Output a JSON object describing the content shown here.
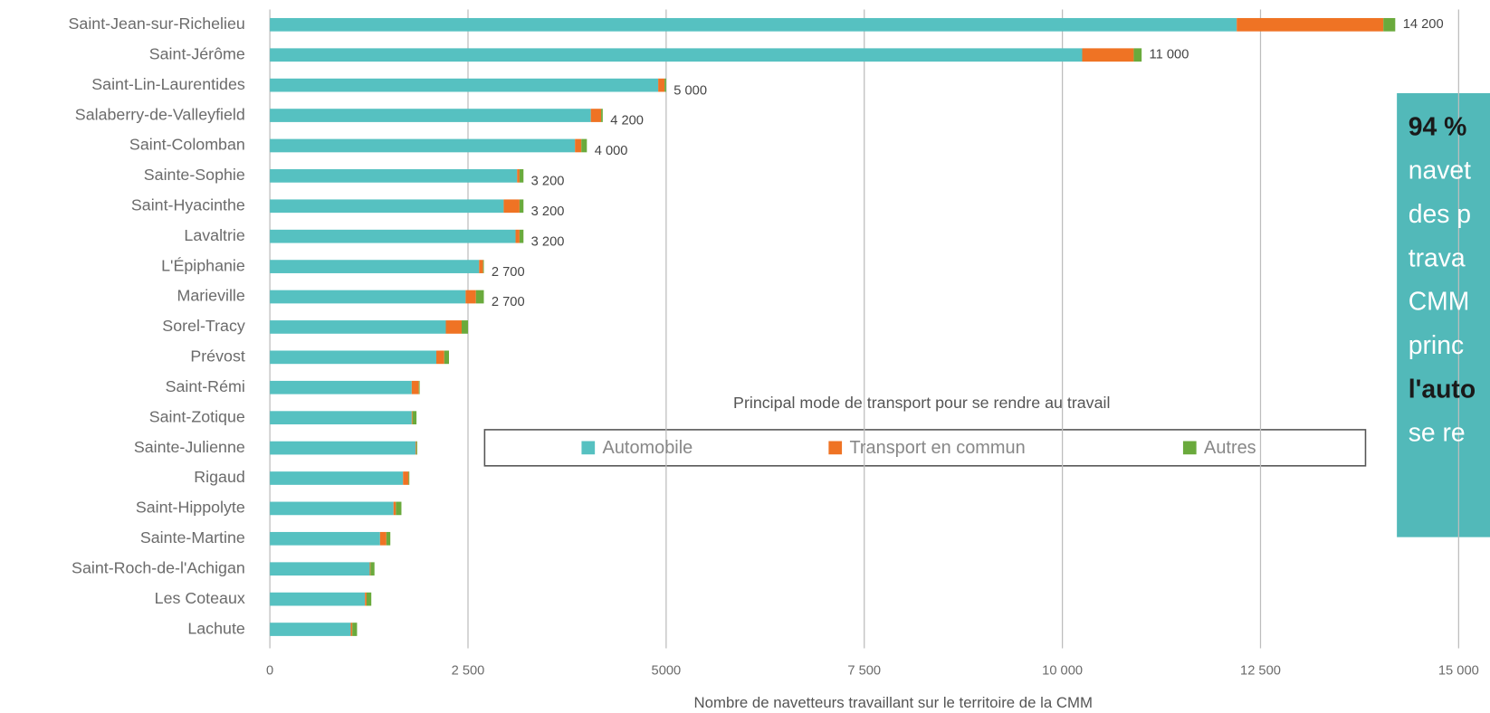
{
  "chart_data": {
    "type": "stacked_barh",
    "xlabel": "Nombre de navetteurs travaillant sur le territoire de la CMM",
    "legend_title": "Principal mode de transport pour se rendre au travail",
    "legend_position": "center",
    "categories": [
      "Saint-Jean-sur-Richelieu",
      "Saint-Jérôme",
      "Saint-Lin-Laurentides",
      "Salaberry-de-Valleyfield",
      "Saint-Colomban",
      "Sainte-Sophie",
      "Saint-Hyacinthe",
      "Lavaltrie",
      "L'Épiphanie",
      "Marieville",
      "Sorel-Tracy",
      "Prévost",
      "Saint-Rémi",
      "Saint-Zotique",
      "Sainte-Julienne",
      "Rigaud",
      "Saint-Hippolyte",
      "Sainte-Martine",
      "Saint-Roch-de-l'Achigan",
      "Les Coteaux",
      "Lachute"
    ],
    "series": [
      {
        "name": "Automobile",
        "color": "#56c1c1",
        "values": [
          12200,
          10250,
          4900,
          4050,
          3850,
          3120,
          2950,
          3100,
          2640,
          2470,
          2220,
          2100,
          1790,
          1790,
          1840,
          1680,
          1560,
          1390,
          1260,
          1200,
          1020
        ]
      },
      {
        "name": "Transport en commun",
        "color": "#ef7324",
        "values": [
          1850,
          650,
          80,
          130,
          80,
          30,
          200,
          50,
          50,
          130,
          200,
          100,
          90,
          10,
          10,
          70,
          30,
          80,
          10,
          20,
          20
        ]
      },
      {
        "name": "Autres",
        "color": "#6aaa3c",
        "values": [
          150,
          100,
          20,
          20,
          70,
          50,
          50,
          50,
          10,
          100,
          80,
          60,
          10,
          50,
          10,
          10,
          70,
          50,
          50,
          60,
          60
        ]
      }
    ],
    "value_labels": [
      "14 200",
      "11 000",
      "5 000",
      "4 200",
      "4 000",
      "3 200",
      "3 200",
      "3 200",
      "2 700",
      "2 700",
      null,
      null,
      null,
      null,
      null,
      null,
      null,
      null,
      null,
      null,
      null
    ],
    "xlim": [
      0,
      15000
    ],
    "xticks": [
      0,
      {
        "value": 2500,
        "label": "2 500"
      },
      5000,
      {
        "value": 7500,
        "label": "7 500"
      },
      {
        "value": 10000,
        "label": "10 000"
      },
      {
        "value": 12500,
        "label": "12 500"
      },
      {
        "value": 15000,
        "label": "15 000"
      }
    ],
    "grid": true
  },
  "text_box": {
    "lines": [
      {
        "text": "94 %",
        "bold": true
      },
      {
        "text": "navet",
        "bold": false
      },
      {
        "text": "des p",
        "bold": false
      },
      {
        "text": "trava",
        "bold": false
      },
      {
        "text": "CMM",
        "bold": false
      },
      {
        "text": "princ",
        "bold": false
      },
      {
        "text": "l'auto",
        "bold": true
      },
      {
        "text": "se re",
        "bold": false
      }
    ]
  }
}
